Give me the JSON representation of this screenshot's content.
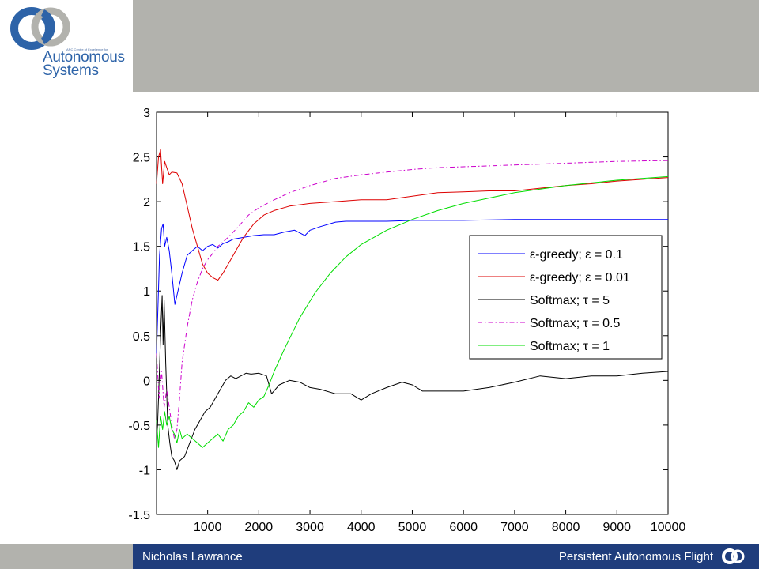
{
  "logo": {
    "small_text": "ARC Centre of Excellence for",
    "line1": "Autonomous",
    "line2": "Systems",
    "icon": "acfr-swirl-logo"
  },
  "footer": {
    "author": "Nicholas Lawrance",
    "title": "Persistent Autonomous Flight",
    "icon": "acfr-swirl-logo-small"
  },
  "colors": {
    "header_bg": "#b2b2ad",
    "footer_bg": "#1f3d7c",
    "logo_blue": "#2d63a8",
    "logo_grey": "#b2b2ad"
  },
  "chart_data": {
    "type": "line",
    "title": "",
    "xlabel": "",
    "ylabel": "",
    "xlim": [
      1,
      10000
    ],
    "ylim": [
      -1.5,
      3
    ],
    "x_ticks": [
      "1000",
      "2000",
      "3000",
      "4000",
      "5000",
      "6000",
      "7000",
      "8000",
      "9000",
      "10000"
    ],
    "y_ticks": [
      "-1.5",
      "-1",
      "-0.5",
      "0",
      "0.5",
      "1",
      "1.5",
      "2",
      "2.5",
      "3"
    ],
    "grid": false,
    "legend_position": "center-right",
    "series": [
      {
        "name": "ε-greedy; ε = 0.1",
        "color": "#0000ff",
        "dash": "solid",
        "points": [
          [
            0,
            0.3
          ],
          [
            60,
            1.4
          ],
          [
            100,
            1.7
          ],
          [
            130,
            1.75
          ],
          [
            160,
            1.5
          ],
          [
            200,
            1.6
          ],
          [
            250,
            1.45
          ],
          [
            300,
            1.2
          ],
          [
            360,
            0.85
          ],
          [
            420,
            1.0
          ],
          [
            500,
            1.2
          ],
          [
            600,
            1.4
          ],
          [
            700,
            1.45
          ],
          [
            800,
            1.5
          ],
          [
            900,
            1.45
          ],
          [
            1000,
            1.5
          ],
          [
            1100,
            1.52
          ],
          [
            1200,
            1.48
          ],
          [
            1300,
            1.53
          ],
          [
            1400,
            1.55
          ],
          [
            1500,
            1.58
          ],
          [
            1700,
            1.6
          ],
          [
            1900,
            1.62
          ],
          [
            2100,
            1.63
          ],
          [
            2300,
            1.63
          ],
          [
            2500,
            1.66
          ],
          [
            2700,
            1.68
          ],
          [
            2900,
            1.62
          ],
          [
            3000,
            1.68
          ],
          [
            3200,
            1.72
          ],
          [
            3500,
            1.77
          ],
          [
            3700,
            1.78
          ],
          [
            4000,
            1.78
          ],
          [
            4500,
            1.78
          ],
          [
            5000,
            1.79
          ],
          [
            6000,
            1.79
          ],
          [
            7000,
            1.8
          ],
          [
            8000,
            1.8
          ],
          [
            10000,
            1.8
          ]
        ]
      },
      {
        "name": "ε-greedy; ε = 0.01",
        "color": "#dd0000",
        "dash": "solid",
        "points": [
          [
            0,
            2.2
          ],
          [
            40,
            2.5
          ],
          [
            80,
            2.58
          ],
          [
            120,
            2.2
          ],
          [
            160,
            2.45
          ],
          [
            200,
            2.38
          ],
          [
            250,
            2.3
          ],
          [
            300,
            2.33
          ],
          [
            400,
            2.32
          ],
          [
            500,
            2.2
          ],
          [
            600,
            1.95
          ],
          [
            700,
            1.7
          ],
          [
            800,
            1.5
          ],
          [
            900,
            1.3
          ],
          [
            1000,
            1.2
          ],
          [
            1100,
            1.15
          ],
          [
            1200,
            1.12
          ],
          [
            1300,
            1.2
          ],
          [
            1500,
            1.4
          ],
          [
            1700,
            1.6
          ],
          [
            1900,
            1.75
          ],
          [
            2100,
            1.85
          ],
          [
            2300,
            1.9
          ],
          [
            2600,
            1.95
          ],
          [
            3000,
            1.98
          ],
          [
            3500,
            2.0
          ],
          [
            4000,
            2.02
          ],
          [
            4500,
            2.02
          ],
          [
            5000,
            2.06
          ],
          [
            5500,
            2.1
          ],
          [
            6000,
            2.11
          ],
          [
            6500,
            2.12
          ],
          [
            7000,
            2.12
          ],
          [
            7500,
            2.15
          ],
          [
            8000,
            2.18
          ],
          [
            8500,
            2.2
          ],
          [
            9000,
            2.23
          ],
          [
            10000,
            2.27
          ]
        ]
      },
      {
        "name": "Softmax; τ = 5",
        "color": "#000000",
        "dash": "solid",
        "points": [
          [
            0,
            -0.8
          ],
          [
            40,
            -0.2
          ],
          [
            80,
            0.5
          ],
          [
            110,
            0.95
          ],
          [
            130,
            0.4
          ],
          [
            150,
            0.9
          ],
          [
            180,
            0.2
          ],
          [
            220,
            -0.5
          ],
          [
            260,
            -0.7
          ],
          [
            300,
            -0.85
          ],
          [
            350,
            -0.9
          ],
          [
            400,
            -1.0
          ],
          [
            450,
            -0.9
          ],
          [
            550,
            -0.85
          ],
          [
            650,
            -0.7
          ],
          [
            750,
            -0.55
          ],
          [
            850,
            -0.45
          ],
          [
            950,
            -0.35
          ],
          [
            1050,
            -0.3
          ],
          [
            1150,
            -0.2
          ],
          [
            1250,
            -0.1
          ],
          [
            1350,
            0.0
          ],
          [
            1450,
            0.05
          ],
          [
            1550,
            0.02
          ],
          [
            1650,
            0.05
          ],
          [
            1750,
            0.08
          ],
          [
            1850,
            0.07
          ],
          [
            2000,
            0.08
          ],
          [
            2150,
            0.05
          ],
          [
            2250,
            -0.15
          ],
          [
            2400,
            -0.05
          ],
          [
            2600,
            0.0
          ],
          [
            2800,
            -0.02
          ],
          [
            3000,
            -0.08
          ],
          [
            3200,
            -0.1
          ],
          [
            3500,
            -0.15
          ],
          [
            3800,
            -0.15
          ],
          [
            4000,
            -0.22
          ],
          [
            4200,
            -0.15
          ],
          [
            4500,
            -0.08
          ],
          [
            4800,
            -0.02
          ],
          [
            5000,
            -0.05
          ],
          [
            5200,
            -0.12
          ],
          [
            5500,
            -0.12
          ],
          [
            6000,
            -0.12
          ],
          [
            6500,
            -0.08
          ],
          [
            7000,
            -0.02
          ],
          [
            7500,
            0.05
          ],
          [
            8000,
            0.02
          ],
          [
            8500,
            0.05
          ],
          [
            9000,
            0.05
          ],
          [
            9500,
            0.08
          ],
          [
            10000,
            0.1
          ]
        ]
      },
      {
        "name": "Softmax; τ = 0.5",
        "color": "#cc00cc",
        "dash": "dashdot",
        "points": [
          [
            0,
            0.3
          ],
          [
            50,
            -0.2
          ],
          [
            100,
            0.1
          ],
          [
            150,
            -0.3
          ],
          [
            200,
            -0.1
          ],
          [
            300,
            -0.5
          ],
          [
            350,
            -0.65
          ],
          [
            400,
            -0.55
          ],
          [
            450,
            -0.2
          ],
          [
            500,
            0.2
          ],
          [
            600,
            0.6
          ],
          [
            700,
            0.9
          ],
          [
            800,
            1.1
          ],
          [
            900,
            1.25
          ],
          [
            1000,
            1.35
          ],
          [
            1100,
            1.42
          ],
          [
            1200,
            1.5
          ],
          [
            1400,
            1.6
          ],
          [
            1600,
            1.72
          ],
          [
            1800,
            1.85
          ],
          [
            2000,
            1.93
          ],
          [
            2300,
            2.02
          ],
          [
            2600,
            2.1
          ],
          [
            3000,
            2.18
          ],
          [
            3500,
            2.26
          ],
          [
            4000,
            2.3
          ],
          [
            4500,
            2.33
          ],
          [
            5000,
            2.36
          ],
          [
            5500,
            2.38
          ],
          [
            6000,
            2.39
          ],
          [
            6500,
            2.4
          ],
          [
            7000,
            2.41
          ],
          [
            7500,
            2.42
          ],
          [
            8000,
            2.43
          ],
          [
            8500,
            2.44
          ],
          [
            9000,
            2.45
          ],
          [
            10000,
            2.46
          ]
        ]
      },
      {
        "name": "Softmax; τ = 1",
        "color": "#00dd00",
        "dash": "solid",
        "points": [
          [
            0,
            -0.45
          ],
          [
            40,
            -0.75
          ],
          [
            80,
            -0.4
          ],
          [
            120,
            -0.55
          ],
          [
            160,
            -0.35
          ],
          [
            200,
            -0.5
          ],
          [
            250,
            -0.4
          ],
          [
            300,
            -0.55
          ],
          [
            350,
            -0.6
          ],
          [
            400,
            -0.7
          ],
          [
            450,
            -0.55
          ],
          [
            500,
            -0.65
          ],
          [
            600,
            -0.6
          ],
          [
            700,
            -0.65
          ],
          [
            800,
            -0.7
          ],
          [
            900,
            -0.75
          ],
          [
            1000,
            -0.7
          ],
          [
            1100,
            -0.65
          ],
          [
            1200,
            -0.6
          ],
          [
            1300,
            -0.68
          ],
          [
            1400,
            -0.55
          ],
          [
            1500,
            -0.5
          ],
          [
            1600,
            -0.4
          ],
          [
            1700,
            -0.35
          ],
          [
            1800,
            -0.25
          ],
          [
            1900,
            -0.3
          ],
          [
            2000,
            -0.22
          ],
          [
            2100,
            -0.18
          ],
          [
            2200,
            -0.05
          ],
          [
            2300,
            0.1
          ],
          [
            2500,
            0.35
          ],
          [
            2800,
            0.7
          ],
          [
            3100,
            0.98
          ],
          [
            3400,
            1.2
          ],
          [
            3700,
            1.38
          ],
          [
            4000,
            1.52
          ],
          [
            4500,
            1.68
          ],
          [
            5000,
            1.8
          ],
          [
            5500,
            1.9
          ],
          [
            6000,
            1.98
          ],
          [
            6500,
            2.04
          ],
          [
            7000,
            2.1
          ],
          [
            7500,
            2.14
          ],
          [
            8000,
            2.18
          ],
          [
            8500,
            2.21
          ],
          [
            9000,
            2.24
          ],
          [
            10000,
            2.28
          ]
        ]
      }
    ]
  }
}
